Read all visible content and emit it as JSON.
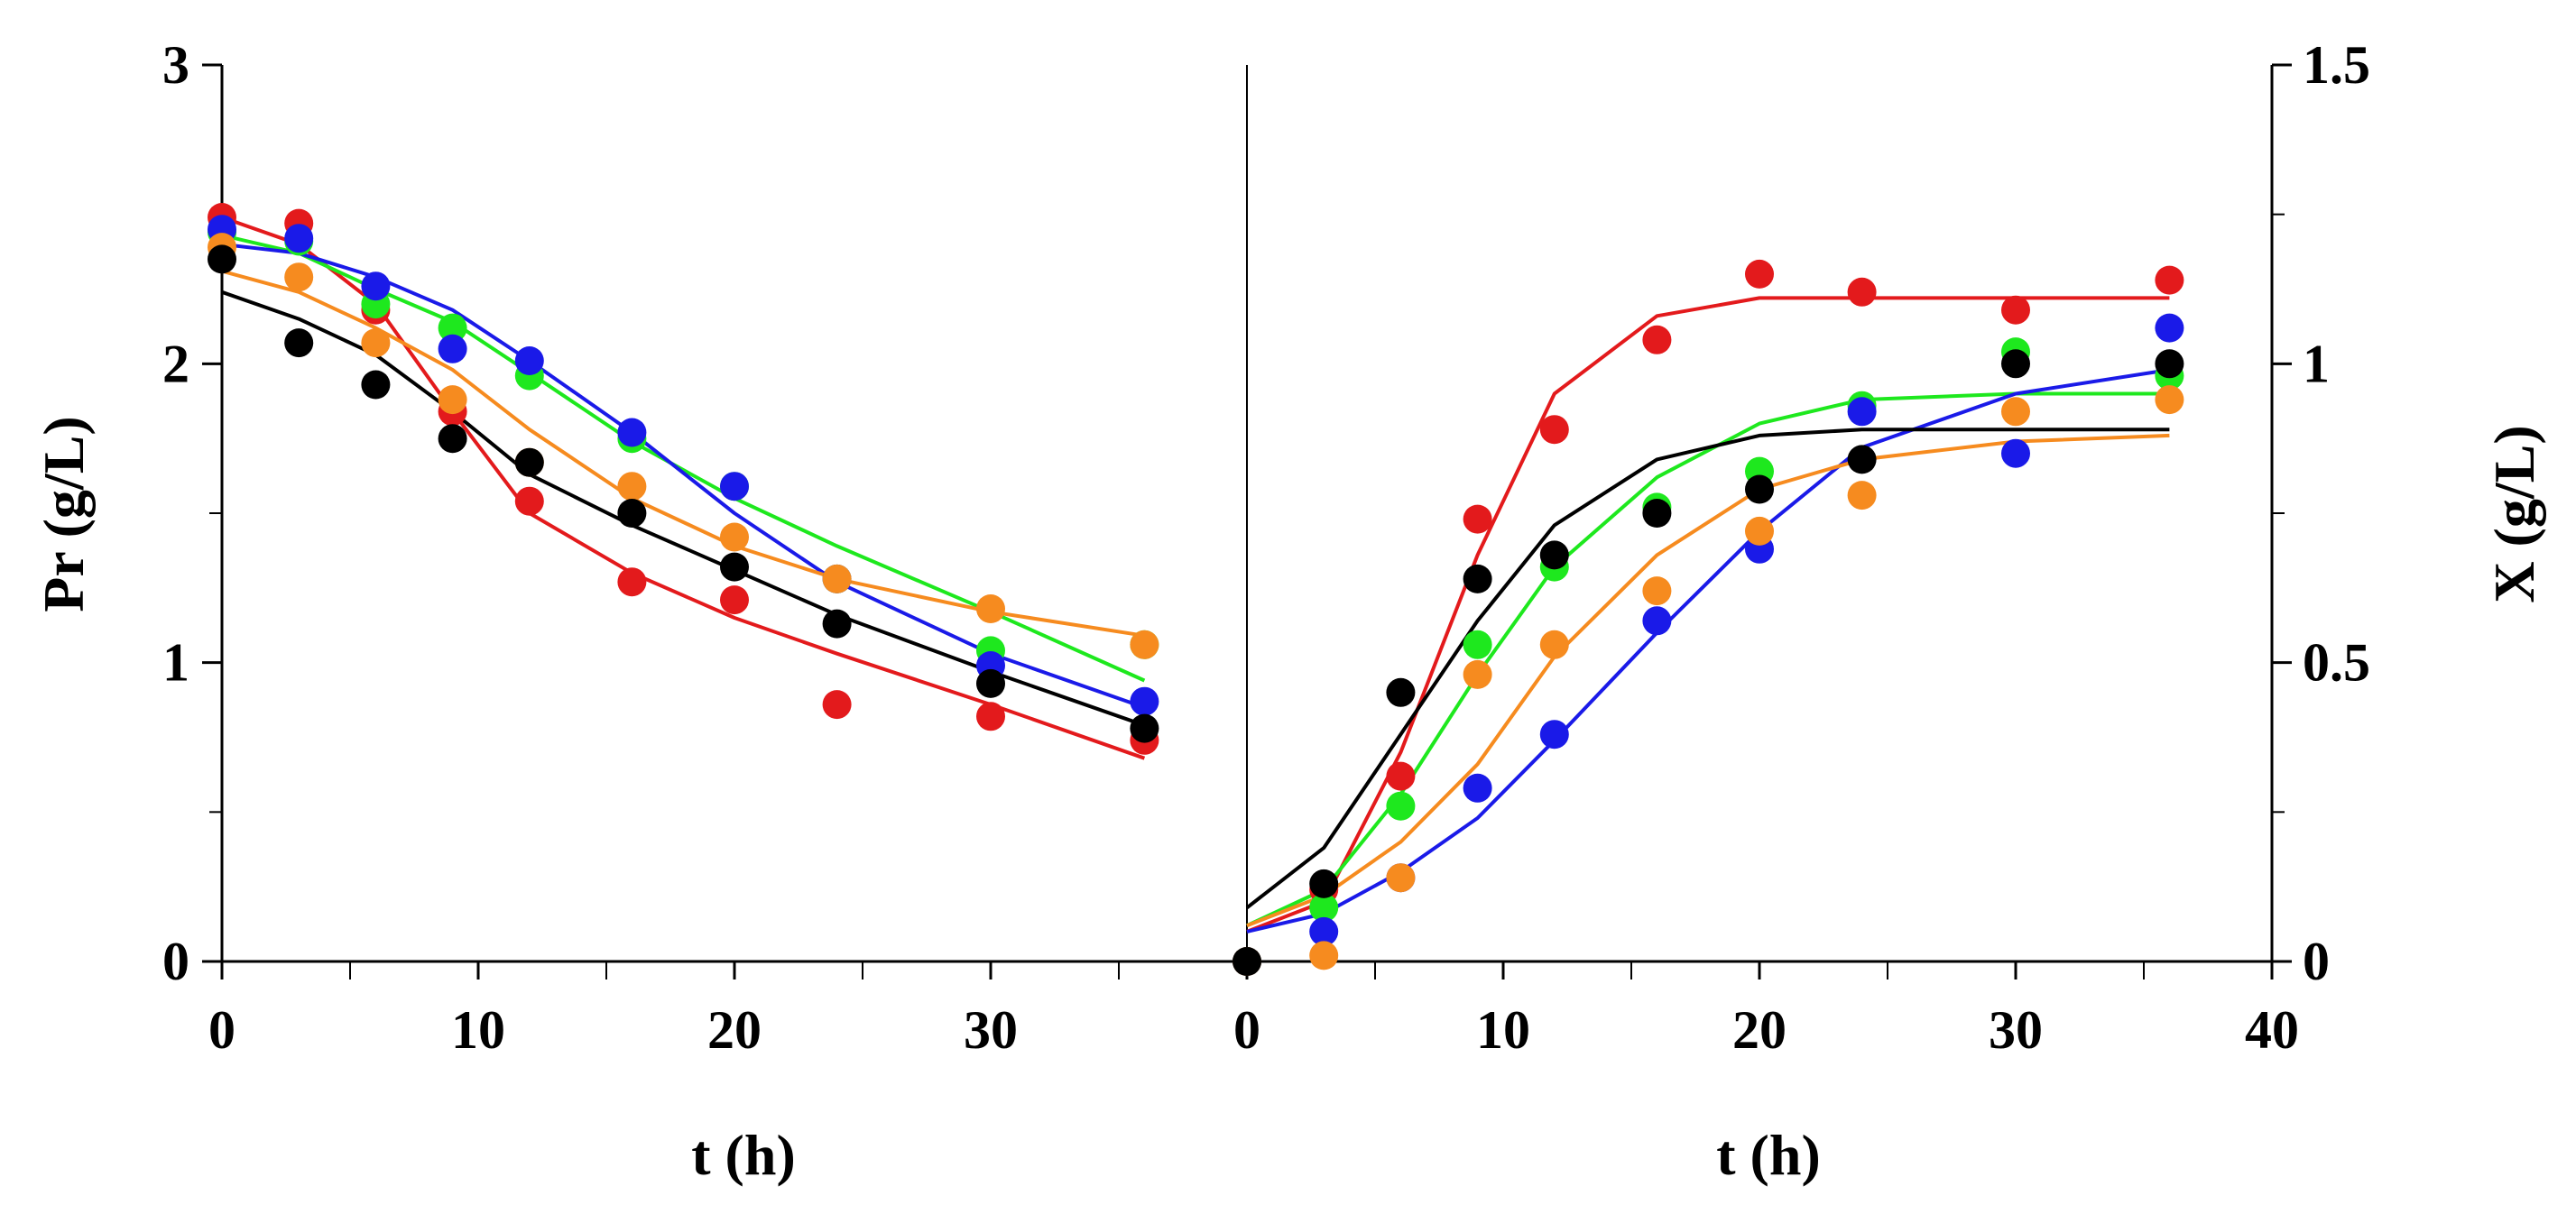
{
  "chart_data": [
    {
      "id": "left",
      "type": "scatter+line",
      "title": "",
      "xlabel": "t (h)",
      "ylabel": "Pr (g/L)",
      "xlim": [
        0,
        40
      ],
      "ylim": [
        0,
        3
      ],
      "x_ticks": [
        0,
        10,
        20,
        30
      ],
      "x_tick_labels": [
        "0",
        "10",
        "20",
        "30"
      ],
      "x_minor_ticks": [
        5,
        15,
        25,
        35
      ],
      "y_ticks": [
        0,
        1,
        2,
        3
      ],
      "y_tick_labels": [
        "0",
        "1",
        "2",
        "3"
      ],
      "y_minor_ticks": [
        0.5,
        1.5,
        2.5
      ],
      "grid": false,
      "series": [
        {
          "name": "red",
          "color": "#e31a1c",
          "points": [
            [
              0,
              2.49
            ],
            [
              3,
              2.47
            ],
            [
              6,
              2.18
            ],
            [
              9,
              1.84
            ],
            [
              12,
              1.54
            ],
            [
              16,
              1.27
            ],
            [
              20,
              1.21
            ],
            [
              24,
              0.86
            ],
            [
              30,
              0.82
            ],
            [
              36,
              0.74
            ]
          ],
          "fit": [
            [
              0,
              2.49
            ],
            [
              3,
              2.4
            ],
            [
              6,
              2.2
            ],
            [
              9,
              1.84
            ],
            [
              12,
              1.5
            ],
            [
              16,
              1.3
            ],
            [
              20,
              1.15
            ],
            [
              24,
              1.03
            ],
            [
              30,
              0.86
            ],
            [
              36,
              0.68
            ]
          ]
        },
        {
          "name": "green",
          "color": "#1ee81e",
          "points": [
            [
              0,
              2.44
            ],
            [
              3,
              2.41
            ],
            [
              6,
              2.2
            ],
            [
              9,
              2.12
            ],
            [
              12,
              1.96
            ],
            [
              16,
              1.75
            ],
            [
              20,
              1.59
            ],
            [
              24,
              1.28
            ],
            [
              30,
              1.04
            ],
            [
              36,
              1.06
            ]
          ],
          "fit": [
            [
              0,
              2.43
            ],
            [
              3,
              2.37
            ],
            [
              6,
              2.25
            ],
            [
              9,
              2.14
            ],
            [
              12,
              1.97
            ],
            [
              16,
              1.74
            ],
            [
              20,
              1.55
            ],
            [
              24,
              1.39
            ],
            [
              30,
              1.17
            ],
            [
              36,
              0.94
            ]
          ]
        },
        {
          "name": "blue",
          "color": "#1a1ae8",
          "points": [
            [
              0,
              2.45
            ],
            [
              3,
              2.42
            ],
            [
              6,
              2.26
            ],
            [
              9,
              2.05
            ],
            [
              12,
              2.01
            ],
            [
              16,
              1.77
            ],
            [
              20,
              1.59
            ],
            [
              24,
              1.28
            ],
            [
              30,
              0.99
            ],
            [
              36,
              0.87
            ]
          ],
          "fit": [
            [
              0,
              2.4
            ],
            [
              3,
              2.37
            ],
            [
              6,
              2.29
            ],
            [
              9,
              2.18
            ],
            [
              12,
              2.01
            ],
            [
              16,
              1.77
            ],
            [
              20,
              1.5
            ],
            [
              24,
              1.27
            ],
            [
              30,
              1.03
            ],
            [
              36,
              0.85
            ]
          ]
        },
        {
          "name": "orange",
          "color": "#f68b1f",
          "points": [
            [
              0,
              2.39
            ],
            [
              3,
              2.29
            ],
            [
              6,
              2.07
            ],
            [
              9,
              1.88
            ],
            [
              12,
              1.67
            ],
            [
              16,
              1.59
            ],
            [
              20,
              1.42
            ],
            [
              24,
              1.28
            ],
            [
              30,
              1.18
            ],
            [
              36,
              1.06
            ]
          ],
          "fit": [
            [
              0,
              2.31
            ],
            [
              3,
              2.24
            ],
            [
              6,
              2.12
            ],
            [
              9,
              1.98
            ],
            [
              12,
              1.78
            ],
            [
              16,
              1.55
            ],
            [
              20,
              1.39
            ],
            [
              24,
              1.28
            ],
            [
              30,
              1.17
            ],
            [
              36,
              1.09
            ]
          ]
        },
        {
          "name": "black",
          "color": "#000000",
          "points": [
            [
              0,
              2.35
            ],
            [
              3,
              2.07
            ],
            [
              6,
              1.93
            ],
            [
              9,
              1.75
            ],
            [
              12,
              1.67
            ],
            [
              16,
              1.5
            ],
            [
              20,
              1.32
            ],
            [
              24,
              1.13
            ],
            [
              30,
              0.93
            ],
            [
              36,
              0.78
            ]
          ],
          "fit": [
            [
              0,
              2.24
            ],
            [
              3,
              2.15
            ],
            [
              6,
              2.03
            ],
            [
              9,
              1.84
            ],
            [
              12,
              1.63
            ],
            [
              16,
              1.46
            ],
            [
              20,
              1.31
            ],
            [
              24,
              1.16
            ],
            [
              30,
              0.97
            ],
            [
              36,
              0.79
            ]
          ]
        }
      ]
    },
    {
      "id": "right",
      "type": "scatter+line",
      "title": "",
      "xlabel": "t (h)",
      "ylabel": "X (g/L)",
      "xlim": [
        0,
        40
      ],
      "ylim": [
        0,
        1.5
      ],
      "x_ticks": [
        0,
        10,
        20,
        30,
        40
      ],
      "x_tick_labels": [
        "0",
        "10",
        "20",
        "30",
        "40"
      ],
      "x_minor_ticks": [
        5,
        15,
        25,
        35
      ],
      "y_ticks": [
        0,
        0.5,
        1,
        1.5
      ],
      "y_tick_labels": [
        "0",
        "0.5",
        "1",
        "1.5"
      ],
      "y_minor_ticks": [
        0.25,
        0.75,
        1.25
      ],
      "grid": false,
      "series": [
        {
          "name": "red",
          "color": "#e31a1c",
          "points": [
            [
              0,
              0
            ],
            [
              3,
              0.12
            ],
            [
              6,
              0.31
            ],
            [
              9,
              0.74
            ],
            [
              12,
              0.89
            ],
            [
              16,
              1.04
            ],
            [
              20,
              1.15
            ],
            [
              24,
              1.12
            ],
            [
              30,
              1.09
            ],
            [
              36,
              1.14
            ]
          ],
          "fit": [
            [
              0,
              0.05
            ],
            [
              3,
              0.1
            ],
            [
              6,
              0.35
            ],
            [
              9,
              0.68
            ],
            [
              12,
              0.95
            ],
            [
              16,
              1.08
            ],
            [
              20,
              1.11
            ],
            [
              24,
              1.11
            ],
            [
              30,
              1.11
            ],
            [
              36,
              1.11
            ]
          ]
        },
        {
          "name": "green",
          "color": "#1ee81e",
          "points": [
            [
              0,
              0
            ],
            [
              3,
              0.09
            ],
            [
              6,
              0.26
            ],
            [
              9,
              0.53
            ],
            [
              12,
              0.66
            ],
            [
              16,
              0.76
            ],
            [
              20,
              0.82
            ],
            [
              24,
              0.93
            ],
            [
              30,
              1.02
            ],
            [
              36,
              0.98
            ]
          ],
          "fit": [
            [
              0,
              0.06
            ],
            [
              3,
              0.12
            ],
            [
              6,
              0.28
            ],
            [
              9,
              0.48
            ],
            [
              12,
              0.66
            ],
            [
              16,
              0.81
            ],
            [
              20,
              0.9
            ],
            [
              24,
              0.94
            ],
            [
              30,
              0.95
            ],
            [
              36,
              0.95
            ]
          ]
        },
        {
          "name": "blue",
          "color": "#1a1ae8",
          "points": [
            [
              0,
              0
            ],
            [
              3,
              0.05
            ],
            [
              6,
              0.14
            ],
            [
              9,
              0.29
            ],
            [
              12,
              0.38
            ],
            [
              16,
              0.57
            ],
            [
              20,
              0.69
            ],
            [
              24,
              0.92
            ],
            [
              30,
              0.85
            ],
            [
              36,
              1.06
            ]
          ],
          "fit": [
            [
              0,
              0.05
            ],
            [
              3,
              0.08
            ],
            [
              6,
              0.15
            ],
            [
              9,
              0.24
            ],
            [
              12,
              0.37
            ],
            [
              16,
              0.55
            ],
            [
              20,
              0.72
            ],
            [
              24,
              0.86
            ],
            [
              30,
              0.95
            ],
            [
              36,
              0.99
            ]
          ]
        },
        {
          "name": "orange",
          "color": "#f68b1f",
          "points": [
            [
              0,
              0
            ],
            [
              3,
              0.01
            ],
            [
              6,
              0.14
            ],
            [
              9,
              0.48
            ],
            [
              12,
              0.53
            ],
            [
              16,
              0.62
            ],
            [
              20,
              0.72
            ],
            [
              24,
              0.78
            ],
            [
              30,
              0.92
            ],
            [
              36,
              0.94
            ]
          ],
          "fit": [
            [
              0,
              0.06
            ],
            [
              3,
              0.11
            ],
            [
              6,
              0.2
            ],
            [
              9,
              0.33
            ],
            [
              12,
              0.51
            ],
            [
              16,
              0.68
            ],
            [
              20,
              0.79
            ],
            [
              24,
              0.84
            ],
            [
              30,
              0.87
            ],
            [
              36,
              0.88
            ]
          ]
        },
        {
          "name": "black",
          "color": "#000000",
          "points": [
            [
              0,
              0
            ],
            [
              3,
              0.13
            ],
            [
              6,
              0.45
            ],
            [
              9,
              0.64
            ],
            [
              12,
              0.68
            ],
            [
              16,
              0.75
            ],
            [
              20,
              0.79
            ],
            [
              24,
              0.84
            ],
            [
              30,
              1.0
            ],
            [
              36,
              1.0
            ]
          ],
          "fit": [
            [
              0,
              0.09
            ],
            [
              3,
              0.19
            ],
            [
              6,
              0.38
            ],
            [
              9,
              0.57
            ],
            [
              12,
              0.73
            ],
            [
              16,
              0.84
            ],
            [
              20,
              0.88
            ],
            [
              24,
              0.89
            ],
            [
              30,
              0.89
            ],
            [
              36,
              0.89
            ]
          ]
        }
      ]
    }
  ]
}
